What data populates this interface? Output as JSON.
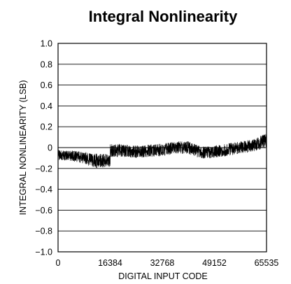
{
  "chart_data": {
    "type": "line",
    "title": "Integral Nonlinearity",
    "xlabel": "DIGITAL INPUT CODE",
    "ylabel": "INTEGRAL NONLINEARITY (LSB)",
    "xlim": [
      0,
      65535
    ],
    "ylim": [
      -1.0,
      1.0
    ],
    "x_ticks": [
      0,
      16384,
      32768,
      49152,
      65535
    ],
    "x_tick_labels": [
      "0",
      "16384",
      "32768",
      "49152",
      "65535"
    ],
    "y_ticks": [
      1.0,
      0.8,
      0.6,
      0.4,
      0.2,
      0,
      -0.2,
      -0.4,
      -0.6,
      -0.8,
      -1.0
    ],
    "y_tick_labels": [
      "1.0",
      "0.8",
      "0.6",
      "0.4",
      "0.2",
      "0",
      "−0.2",
      "−0.4",
      "−0.6",
      "−0.8",
      "−1.0"
    ],
    "grid": {
      "horizontal": true,
      "vertical": false
    },
    "series": [
      {
        "color": "#000000",
        "x": [
          0,
          4096,
          8192,
          12288,
          16384,
          16385,
          20480,
          24576,
          28672,
          32768,
          36864,
          40960,
          45056,
          49152,
          53248,
          57344,
          61440,
          65535
        ],
        "center": [
          -0.07,
          -0.08,
          -0.1,
          -0.13,
          -0.12,
          -0.02,
          -0.03,
          -0.04,
          -0.03,
          -0.02,
          0.0,
          0.0,
          -0.05,
          -0.04,
          -0.02,
          0.0,
          0.02,
          0.07
        ],
        "band_halfwidth": [
          0.05,
          0.05,
          0.06,
          0.07,
          0.06,
          0.07,
          0.06,
          0.06,
          0.06,
          0.06,
          0.06,
          0.06,
          0.06,
          0.06,
          0.06,
          0.06,
          0.06,
          0.07
        ]
      }
    ]
  }
}
